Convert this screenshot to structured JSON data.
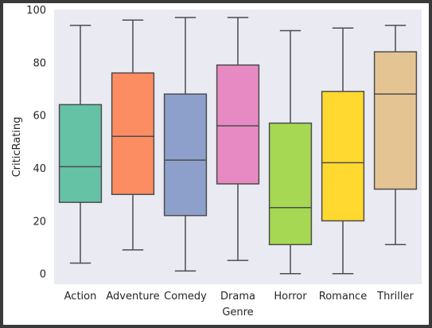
{
  "chart_data": {
    "type": "box",
    "xlabel": "Genre",
    "ylabel": "CriticRating",
    "ylim": [
      -4,
      100
    ],
    "yticks": [
      0,
      20,
      40,
      60,
      80,
      100
    ],
    "grid": false,
    "background": "#eaeaf2",
    "categories": [
      "Action",
      "Adventure",
      "Comedy",
      "Drama",
      "Horror",
      "Romance",
      "Thriller"
    ],
    "boxes": [
      {
        "category": "Action",
        "whisker_low": 4,
        "q1": 27,
        "median": 40.5,
        "q3": 64,
        "whisker_high": 94,
        "color": "#66c2a5"
      },
      {
        "category": "Adventure",
        "whisker_low": 9,
        "q1": 30,
        "median": 52,
        "q3": 76,
        "whisker_high": 96,
        "color": "#fc8d62"
      },
      {
        "category": "Comedy",
        "whisker_low": 1,
        "q1": 22,
        "median": 43,
        "q3": 68,
        "whisker_high": 97,
        "color": "#8da0cb"
      },
      {
        "category": "Drama",
        "whisker_low": 5,
        "q1": 34,
        "median": 56,
        "q3": 79,
        "whisker_high": 97,
        "color": "#e78ac3"
      },
      {
        "category": "Horror",
        "whisker_low": 0,
        "q1": 11,
        "median": 25,
        "q3": 57,
        "whisker_high": 92,
        "color": "#a6d854"
      },
      {
        "category": "Romance",
        "whisker_low": 0,
        "q1": 20,
        "median": 42,
        "q3": 69,
        "whisker_high": 93,
        "color": "#ffd92f"
      },
      {
        "category": "Thriller",
        "whisker_low": 11,
        "q1": 32,
        "median": 68,
        "q3": 84,
        "whisker_high": 94,
        "color": "#e5c494"
      }
    ]
  }
}
